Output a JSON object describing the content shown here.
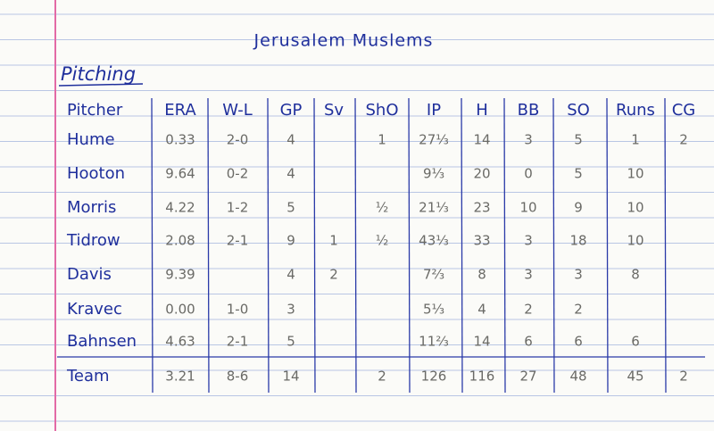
{
  "title": "Jerusalem Muslems",
  "section": "Pitching",
  "table": {
    "header": [
      "Pitcher",
      "ERA",
      "W-L",
      "GP",
      "Sv",
      "ShO",
      "IP",
      "H",
      "BB",
      "SO",
      "Runs",
      "CG"
    ],
    "rows": [
      [
        "Hume",
        "0.33",
        "2-0",
        "4",
        null,
        "1",
        "27⅓",
        "14",
        "3",
        "5",
        "1",
        "2"
      ],
      [
        "Hooton",
        "9.64",
        "0-2",
        "4",
        null,
        null,
        "9⅓",
        "20",
        "0",
        "5",
        "10",
        null
      ],
      [
        "Morris",
        "4.22",
        "1-2",
        "5",
        null,
        "½",
        "21⅓",
        "23",
        "10",
        "9",
        "10",
        null
      ],
      [
        "Tidrow",
        "2.08",
        "2-1",
        "9",
        "1",
        "½",
        "43⅓",
        "33",
        "3",
        "18",
        "10",
        null
      ],
      [
        "Davis",
        "9.39",
        null,
        "4",
        "2",
        null,
        "7⅔",
        "8",
        "3",
        "3",
        "8",
        null
      ],
      [
        "Kravec",
        "0.00",
        "1-0",
        "3",
        null,
        null,
        "5⅓",
        "4",
        "2",
        "2",
        null,
        null
      ],
      [
        "Bahnsen",
        "4.63",
        "2-1",
        "5",
        null,
        null,
        "11⅔",
        "14",
        "6",
        "6",
        "6",
        null
      ],
      [
        "Team",
        "3.21",
        "8-6",
        "14",
        null,
        "2",
        "126",
        "116",
        "27",
        "48",
        "45",
        "2"
      ]
    ]
  }
}
